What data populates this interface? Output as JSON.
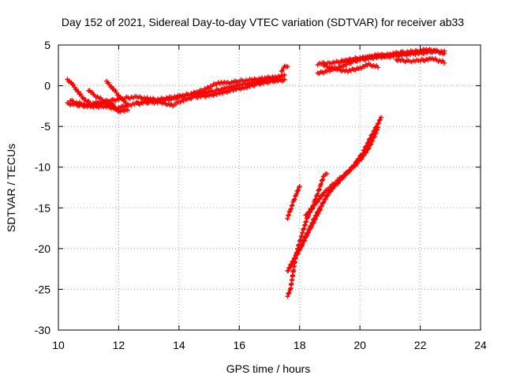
{
  "chart_data": {
    "type": "scatter",
    "title": "Day 152 of 2021, Sidereal Day-to-day VTEC variation (SDTVAR) for receiver ab33",
    "xlabel": "GPS time / hours",
    "ylabel": "SDTVAR / TECUs",
    "xlim": [
      10,
      24
    ],
    "ylim": [
      -30,
      5
    ],
    "x_ticks": [
      "10",
      "12",
      "14",
      "16",
      "18",
      "20",
      "22",
      "24"
    ],
    "y_ticks": [
      "5",
      "0",
      "-5",
      "-10",
      "-15",
      "-20",
      "-25",
      "-30"
    ],
    "grid": true,
    "legend": "none",
    "marker": "+",
    "color": "#ff0000",
    "series": [
      {
        "values": [
          [
            10.3,
            -2.2
          ],
          [
            10.7,
            -2.4
          ],
          [
            11.1,
            -2.6
          ],
          [
            11.5,
            -2.5
          ],
          [
            11.9,
            -2.8
          ],
          [
            12.3,
            -2.4
          ],
          [
            12.8,
            -2.0
          ],
          [
            13.3,
            -1.7
          ],
          [
            13.8,
            -1.4
          ],
          [
            14.3,
            -1.1
          ],
          [
            14.8,
            -0.9
          ],
          [
            15.2,
            -0.6
          ],
          [
            15.6,
            -0.3
          ],
          [
            16.0,
            0.1
          ],
          [
            16.5,
            0.4
          ],
          [
            17.0,
            0.7
          ],
          [
            17.4,
            0.9
          ]
        ]
      },
      {
        "values": [
          [
            10.3,
            0.8
          ],
          [
            10.5,
            0.0
          ],
          [
            10.7,
            -1.0
          ],
          [
            10.9,
            -1.8
          ],
          [
            11.1,
            -2.2
          ],
          [
            11.4,
            -2.0
          ],
          [
            11.8,
            -1.8
          ],
          [
            12.2,
            -1.5
          ],
          [
            12.6,
            -1.4
          ],
          [
            13.0,
            -1.6
          ],
          [
            13.4,
            -1.8
          ],
          [
            13.8,
            -1.6
          ],
          [
            14.2,
            -1.2
          ],
          [
            14.6,
            -0.8
          ],
          [
            15.0,
            -0.2
          ],
          [
            15.3,
            0.4
          ],
          [
            15.6,
            0.3
          ],
          [
            16.0,
            0.6
          ],
          [
            16.4,
            0.7
          ],
          [
            16.8,
            0.9
          ],
          [
            17.2,
            1.1
          ],
          [
            17.5,
            1.2
          ]
        ]
      },
      {
        "values": [
          [
            11.0,
            -0.5
          ],
          [
            11.2,
            -1.2
          ],
          [
            11.4,
            -1.6
          ],
          [
            11.6,
            -2.0
          ],
          [
            11.8,
            -2.3
          ]
        ]
      },
      {
        "values": [
          [
            11.6,
            0.5
          ],
          [
            11.8,
            -0.3
          ],
          [
            12.0,
            -1.2
          ],
          [
            12.2,
            -2.0
          ],
          [
            12.3,
            -2.4
          ]
        ]
      },
      {
        "values": [
          [
            10.4,
            -1.8
          ],
          [
            10.6,
            -2.1
          ],
          [
            10.9,
            -2.3
          ],
          [
            11.2,
            -2.4
          ],
          [
            11.5,
            -2.2
          ],
          [
            11.8,
            -2.4
          ],
          [
            12.0,
            -3.2
          ],
          [
            12.3,
            -2.9
          ]
        ]
      },
      {
        "values": [
          [
            12.6,
            -2.2
          ],
          [
            13.0,
            -2.0
          ],
          [
            13.4,
            -2.1
          ],
          [
            13.8,
            -2.4
          ],
          [
            14.1,
            -1.8
          ],
          [
            14.5,
            -1.4
          ],
          [
            15.0,
            -1.2
          ],
          [
            15.4,
            -0.9
          ],
          [
            15.8,
            -0.5
          ],
          [
            16.2,
            -0.2
          ],
          [
            16.6,
            0.2
          ],
          [
            17.0,
            0.5
          ],
          [
            17.5,
            0.7
          ]
        ]
      },
      {
        "values": [
          [
            17.4,
            1.8
          ],
          [
            17.5,
            2.3
          ],
          [
            17.6,
            2.4
          ]
        ]
      },
      {
        "values": [
          [
            18.6,
            2.7
          ],
          [
            19.0,
            2.8
          ],
          [
            19.5,
            3.0
          ],
          [
            20.0,
            3.2
          ],
          [
            20.5,
            3.5
          ],
          [
            21.0,
            3.6
          ],
          [
            21.5,
            3.8
          ],
          [
            22.0,
            4.0
          ],
          [
            22.5,
            4.2
          ],
          [
            22.8,
            4.2
          ]
        ]
      },
      {
        "values": [
          [
            18.6,
            1.5
          ],
          [
            19.0,
            1.9
          ],
          [
            19.4,
            2.4
          ],
          [
            19.8,
            3.0
          ],
          [
            20.2,
            3.4
          ],
          [
            20.6,
            3.8
          ],
          [
            21.0,
            3.6
          ],
          [
            21.5,
            3.9
          ],
          [
            22.0,
            4.1
          ],
          [
            22.5,
            4.3
          ],
          [
            22.8,
            3.9
          ]
        ]
      },
      {
        "values": [
          [
            18.8,
            2.5
          ],
          [
            19.2,
            2.0
          ],
          [
            19.6,
            1.8
          ],
          [
            20.0,
            2.2
          ],
          [
            20.3,
            2.6
          ],
          [
            20.6,
            2.3
          ]
        ]
      },
      {
        "values": [
          [
            19.4,
            3.0
          ],
          [
            19.8,
            3.3
          ],
          [
            20.2,
            3.5
          ],
          [
            20.6,
            3.6
          ],
          [
            21.0,
            3.9
          ],
          [
            21.4,
            4.1
          ],
          [
            21.8,
            4.2
          ],
          [
            22.2,
            4.4
          ],
          [
            22.6,
            4.3
          ]
        ]
      },
      {
        "values": [
          [
            21.2,
            3.2
          ],
          [
            21.6,
            3.0
          ],
          [
            22.0,
            3.1
          ],
          [
            22.4,
            3.3
          ],
          [
            22.8,
            2.9
          ]
        ]
      },
      {
        "values": [
          [
            17.6,
            -16.2
          ],
          [
            17.7,
            -15.2
          ],
          [
            17.8,
            -14.2
          ],
          [
            17.9,
            -13.2
          ],
          [
            18.0,
            -12.4
          ]
        ]
      },
      {
        "values": [
          [
            17.6,
            -22.8
          ],
          [
            17.8,
            -21.5
          ],
          [
            18.0,
            -20.0
          ],
          [
            18.2,
            -18.6
          ],
          [
            18.4,
            -17.2
          ],
          [
            18.6,
            -15.8
          ],
          [
            18.8,
            -14.2
          ],
          [
            19.0,
            -13.0
          ],
          [
            19.2,
            -12.2
          ],
          [
            19.5,
            -11.0
          ],
          [
            19.8,
            -9.8
          ],
          [
            20.1,
            -8.2
          ],
          [
            20.4,
            -6.0
          ],
          [
            20.7,
            -4.0
          ]
        ]
      },
      {
        "values": [
          [
            17.6,
            -25.8
          ],
          [
            17.7,
            -25.0
          ],
          [
            17.8,
            -22.5
          ],
          [
            17.9,
            -20.5
          ],
          [
            18.0,
            -19.2
          ],
          [
            18.1,
            -18.0
          ],
          [
            18.2,
            -16.8
          ],
          [
            18.3,
            -15.8
          ],
          [
            18.4,
            -15.2
          ],
          [
            18.5,
            -14.2
          ],
          [
            18.6,
            -13.2
          ],
          [
            18.7,
            -12.2
          ],
          [
            18.8,
            -11.0
          ],
          [
            18.9,
            -10.8
          ]
        ]
      },
      {
        "values": [
          [
            18.2,
            -16.0
          ],
          [
            18.5,
            -14.6
          ],
          [
            18.8,
            -13.2
          ],
          [
            19.2,
            -11.8
          ],
          [
            19.6,
            -10.6
          ],
          [
            20.0,
            -9.2
          ],
          [
            20.3,
            -7.6
          ],
          [
            20.6,
            -5.2
          ]
        ]
      },
      {
        "values": [
          [
            17.7,
            -22.0
          ],
          [
            17.9,
            -20.8
          ],
          [
            18.1,
            -19.4
          ],
          [
            18.3,
            -17.8
          ],
          [
            18.5,
            -16.2
          ],
          [
            18.7,
            -14.8
          ]
        ]
      }
    ]
  }
}
